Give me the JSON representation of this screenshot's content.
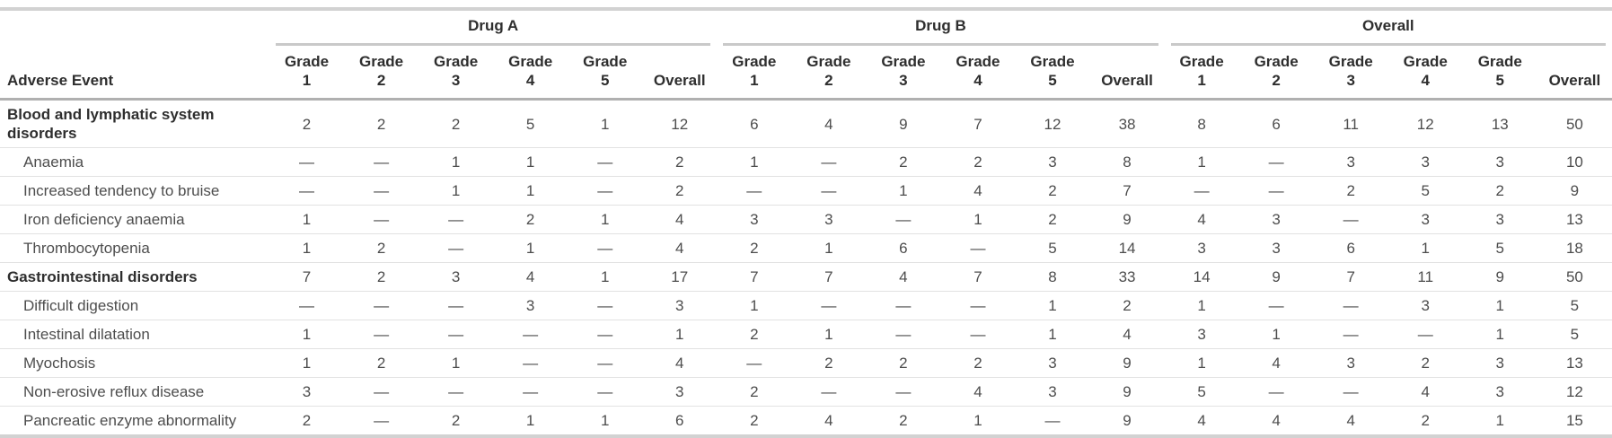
{
  "chart_data": {
    "type": "table",
    "row_header": "Adverse Event",
    "column_groups": [
      "Drug A",
      "Drug B",
      "Overall"
    ],
    "sub_columns": [
      "Grade 1",
      "Grade 2",
      "Grade 3",
      "Grade 4",
      "Grade 5",
      "Overall"
    ],
    "empty_marker": "—",
    "rows": [
      {
        "label": "Blood and lymphatic system disorders",
        "category": true,
        "drug_a": [
          "2",
          "2",
          "2",
          "5",
          "1",
          "12"
        ],
        "drug_b": [
          "6",
          "4",
          "9",
          "7",
          "12",
          "38"
        ],
        "overall": [
          "8",
          "6",
          "11",
          "12",
          "13",
          "50"
        ]
      },
      {
        "label": "Anaemia",
        "category": false,
        "drug_a": [
          "—",
          "—",
          "1",
          "1",
          "—",
          "2"
        ],
        "drug_b": [
          "1",
          "—",
          "2",
          "2",
          "3",
          "8"
        ],
        "overall": [
          "1",
          "—",
          "3",
          "3",
          "3",
          "10"
        ]
      },
      {
        "label": "Increased tendency to bruise",
        "category": false,
        "drug_a": [
          "—",
          "—",
          "1",
          "1",
          "—",
          "2"
        ],
        "drug_b": [
          "—",
          "—",
          "1",
          "4",
          "2",
          "7"
        ],
        "overall": [
          "—",
          "—",
          "2",
          "5",
          "2",
          "9"
        ]
      },
      {
        "label": "Iron deficiency anaemia",
        "category": false,
        "drug_a": [
          "1",
          "—",
          "—",
          "2",
          "1",
          "4"
        ],
        "drug_b": [
          "3",
          "3",
          "—",
          "1",
          "2",
          "9"
        ],
        "overall": [
          "4",
          "3",
          "—",
          "3",
          "3",
          "13"
        ]
      },
      {
        "label": "Thrombocytopenia",
        "category": false,
        "drug_a": [
          "1",
          "2",
          "—",
          "1",
          "—",
          "4"
        ],
        "drug_b": [
          "2",
          "1",
          "6",
          "—",
          "5",
          "14"
        ],
        "overall": [
          "3",
          "3",
          "6",
          "1",
          "5",
          "18"
        ]
      },
      {
        "label": "Gastrointestinal disorders",
        "category": true,
        "drug_a": [
          "7",
          "2",
          "3",
          "4",
          "1",
          "17"
        ],
        "drug_b": [
          "7",
          "7",
          "4",
          "7",
          "8",
          "33"
        ],
        "overall": [
          "14",
          "9",
          "7",
          "11",
          "9",
          "50"
        ]
      },
      {
        "label": "Difficult digestion",
        "category": false,
        "drug_a": [
          "—",
          "—",
          "—",
          "3",
          "—",
          "3"
        ],
        "drug_b": [
          "1",
          "—",
          "—",
          "—",
          "1",
          "2"
        ],
        "overall": [
          "1",
          "—",
          "—",
          "3",
          "1",
          "5"
        ]
      },
      {
        "label": "Intestinal dilatation",
        "category": false,
        "drug_a": [
          "1",
          "—",
          "—",
          "—",
          "—",
          "1"
        ],
        "drug_b": [
          "2",
          "1",
          "—",
          "—",
          "1",
          "4"
        ],
        "overall": [
          "3",
          "1",
          "—",
          "—",
          "1",
          "5"
        ]
      },
      {
        "label": "Myochosis",
        "category": false,
        "drug_a": [
          "1",
          "2",
          "1",
          "—",
          "—",
          "4"
        ],
        "drug_b": [
          "—",
          "2",
          "2",
          "2",
          "3",
          "9"
        ],
        "overall": [
          "1",
          "4",
          "3",
          "2",
          "3",
          "13"
        ]
      },
      {
        "label": "Non-erosive reflux disease",
        "category": false,
        "drug_a": [
          "3",
          "—",
          "—",
          "—",
          "—",
          "3"
        ],
        "drug_b": [
          "2",
          "—",
          "—",
          "4",
          "3",
          "9"
        ],
        "overall": [
          "5",
          "—",
          "—",
          "4",
          "3",
          "12"
        ]
      },
      {
        "label": "Pancreatic enzyme abnormality",
        "category": false,
        "drug_a": [
          "2",
          "—",
          "2",
          "1",
          "1",
          "6"
        ],
        "drug_b": [
          "2",
          "4",
          "2",
          "1",
          "—",
          "9"
        ],
        "overall": [
          "4",
          "4",
          "4",
          "2",
          "1",
          "15"
        ]
      }
    ]
  },
  "colors": {
    "text": "#4d4d4d",
    "bold_text": "#2e2e2e",
    "thick_border": "#d2d2d2",
    "spanner_underline": "#c9c9c9",
    "header_separator": "#b0b0b0",
    "row_separator": "#e2e2e2"
  }
}
